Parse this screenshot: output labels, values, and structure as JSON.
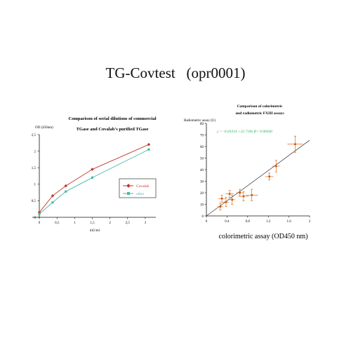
{
  "page_title": "TG-Covtest   (opr0001)",
  "chart_data": [
    {
      "type": "line",
      "title": "Comparison of serial dilutions of commercial TGase and  Covalab's purified TGase",
      "title_lines": [
        "Comparison of serial dilutions of commercial",
        "TGase and  Covalab's purified TGase"
      ],
      "xlabel": "mU/ml",
      "ylabel": "OD (450nm)",
      "xlim": [
        -0.2,
        3.3
      ],
      "ylim": [
        0,
        2.5
      ],
      "x_ticks": [
        0,
        0.5,
        1,
        1.5,
        2,
        2.5,
        3
      ],
      "x_tick_labels": [
        "0",
        "0,5",
        "1",
        "1,5",
        "2",
        "2,5",
        "3"
      ],
      "y_ticks": [
        0,
        0.5,
        1,
        1.5,
        2,
        2.5
      ],
      "y_tick_labels": [
        "0",
        "0,5",
        "1",
        "1,5",
        "2",
        "2,5"
      ],
      "grid": false,
      "legend_position": "right",
      "series": [
        {
          "name": "Covalab",
          "color": "#c0392b",
          "marker": "diamond",
          "x": [
            0,
            0.375,
            0.75,
            1.5,
            3.1
          ],
          "y": [
            0.15,
            0.65,
            0.95,
            1.45,
            2.2
          ]
        },
        {
          "name": "other",
          "color": "#48b8a8",
          "marker": "square",
          "x": [
            0,
            0.375,
            0.75,
            1.5,
            3.1
          ],
          "y": [
            0.1,
            0.45,
            0.78,
            1.2,
            2.05
          ]
        }
      ]
    },
    {
      "type": "scatter",
      "title": "Comparison of colorimetric and radiometric FXIII assays",
      "title_lines": [
        "Comparison of colorimetric",
        "and radiometric FXIII assays"
      ],
      "xlabel": "colorimetric assay (OD450 nm)",
      "ylabel": "Radiometric assay (U)",
      "xlim": [
        0,
        2
      ],
      "ylim": [
        0,
        80
      ],
      "x_ticks": [
        0,
        0.4,
        0.8,
        1.2,
        1.6,
        2
      ],
      "x_tick_labels": [
        "0",
        "0.4",
        "0.8",
        "1.2",
        "1.6",
        "2"
      ],
      "y_ticks": [
        0,
        10,
        20,
        30,
        40,
        50,
        60,
        70,
        80
      ],
      "y_tick_labels": [
        "0",
        "10",
        "20",
        "30",
        "40",
        "50",
        "60",
        "70",
        "80"
      ],
      "grid": false,
      "equation": "y = -0.03314 +32.718x R= 0.96036",
      "fit": {
        "slope": 32.718,
        "intercept": -0.03314,
        "r": 0.96036
      },
      "point_color": "#d35400",
      "fit_color": "#333333",
      "equation_color": "#27ae60",
      "points": [
        {
          "x": 0.27,
          "y": 8,
          "xerr": 0.05,
          "yerr": 3
        },
        {
          "x": 0.3,
          "y": 15,
          "xerr": 0.07,
          "yerr": 3
        },
        {
          "x": 0.38,
          "y": 12,
          "xerr": 0.06,
          "yerr": 4
        },
        {
          "x": 0.45,
          "y": 19,
          "xerr": 0.08,
          "yerr": 3
        },
        {
          "x": 0.5,
          "y": 14,
          "xerr": 0.06,
          "yerr": 4
        },
        {
          "x": 0.65,
          "y": 20,
          "xerr": 0.07,
          "yerr": 3
        },
        {
          "x": 0.72,
          "y": 17,
          "xerr": 0.1,
          "yerr": 4
        },
        {
          "x": 0.88,
          "y": 18,
          "xerr": 0.12,
          "yerr": 5
        },
        {
          "x": 1.22,
          "y": 34,
          "xerr": 0.08,
          "yerr": 3
        },
        {
          "x": 1.35,
          "y": 43,
          "xerr": 0.07,
          "yerr": 5
        },
        {
          "x": 1.72,
          "y": 62,
          "xerr": 0.15,
          "yerr": 7
        }
      ]
    }
  ]
}
